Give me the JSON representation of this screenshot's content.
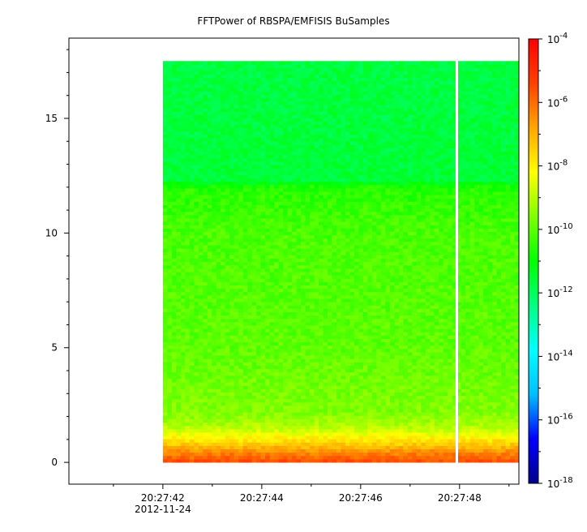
{
  "chart_data": {
    "type": "heatmap",
    "title": "FFTPower of RBSPA/EMFISIS  BuSamples",
    "xlabel": "",
    "ylabel": "",
    "x_range": [
      "20:27:40.1",
      "20:27:49.2"
    ],
    "x_ticks": [
      {
        "label": "20:27:42",
        "sublabel": "2012-11-24"
      },
      {
        "label": "20:27:44"
      },
      {
        "label": "20:27:46"
      },
      {
        "label": "20:27:48"
      }
    ],
    "y_range": [
      -0.95,
      18.5
    ],
    "y_ticks": [
      "0",
      "5",
      "10",
      "15"
    ],
    "colorbar": {
      "scale": "log",
      "range": [
        1e-18,
        0.0001
      ],
      "tick_base": "10",
      "tick_exponents": [
        "-4",
        "-6",
        "-8",
        "-10",
        "-12",
        "-14",
        "-16",
        "-18"
      ],
      "colors": [
        "#00008b",
        "#0000ff",
        "#00bfff",
        "#00ffff",
        "#00ff80",
        "#00ff00",
        "#80ff00",
        "#ffff00",
        "#ffa500",
        "#ff4000",
        "#ff0000"
      ]
    },
    "data_extent": {
      "x_start": "20:27:42",
      "x_end": "20:27:49.2",
      "y_min": 0,
      "y_max": 17.5
    },
    "data_gap": {
      "x_start": "20:27:47.92",
      "x_end": "20:27:47.97"
    },
    "power_profile": [
      {
        "y": 0.0,
        "log_power": -5.5
      },
      {
        "y": 0.4,
        "log_power": -6.3
      },
      {
        "y": 0.8,
        "log_power": -7.4
      },
      {
        "y": 1.2,
        "log_power": -8.3
      },
      {
        "y": 1.6,
        "log_power": -9.1
      },
      {
        "y": 2.2,
        "log_power": -9.6
      },
      {
        "y": 5.0,
        "log_power": -10.0
      },
      {
        "y": 10.0,
        "log_power": -10.2
      },
      {
        "y": 12.0,
        "log_power": -10.6
      },
      {
        "y": 12.3,
        "log_power": -11.6
      },
      {
        "y": 17.5,
        "log_power": -11.7
      }
    ]
  }
}
